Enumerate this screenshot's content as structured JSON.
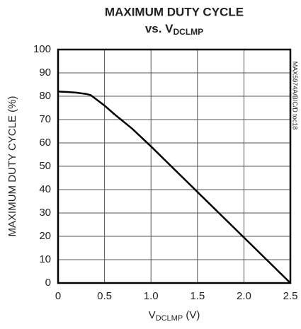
{
  "chart_data": {
    "type": "line",
    "title": "MAXIMUM DUTY CYCLE",
    "subtitle": {
      "text": "vs. V",
      "subscript": "DCLMP"
    },
    "xlabel": {
      "text": "V",
      "subscript": "DCLMP",
      "suffix": " (V)"
    },
    "ylabel": "MAXIMUM DUTY CYCLE (%)",
    "note": "MAX5974A/B/C/D toc18",
    "x": [
      0,
      0.1,
      0.2,
      0.3,
      0.35,
      0.4,
      0.5,
      0.6,
      0.8,
      1.0,
      1.5,
      2.0,
      2.5
    ],
    "values": [
      82,
      81.8,
      81.5,
      81,
      80.5,
      79,
      76,
      72.5,
      66,
      58.5,
      39,
      19.5,
      0
    ],
    "color": "#000000",
    "xlim": [
      0,
      2.5
    ],
    "xticks": [
      0,
      0.5,
      {
        "value": 1,
        "label": "1.0"
      },
      1.5,
      {
        "value": 2,
        "label": "2.0"
      },
      2.5
    ],
    "ylim": [
      0,
      100
    ],
    "yticks": [
      0,
      10,
      20,
      30,
      40,
      50,
      60,
      70,
      80,
      90,
      100
    ],
    "grid": true
  }
}
